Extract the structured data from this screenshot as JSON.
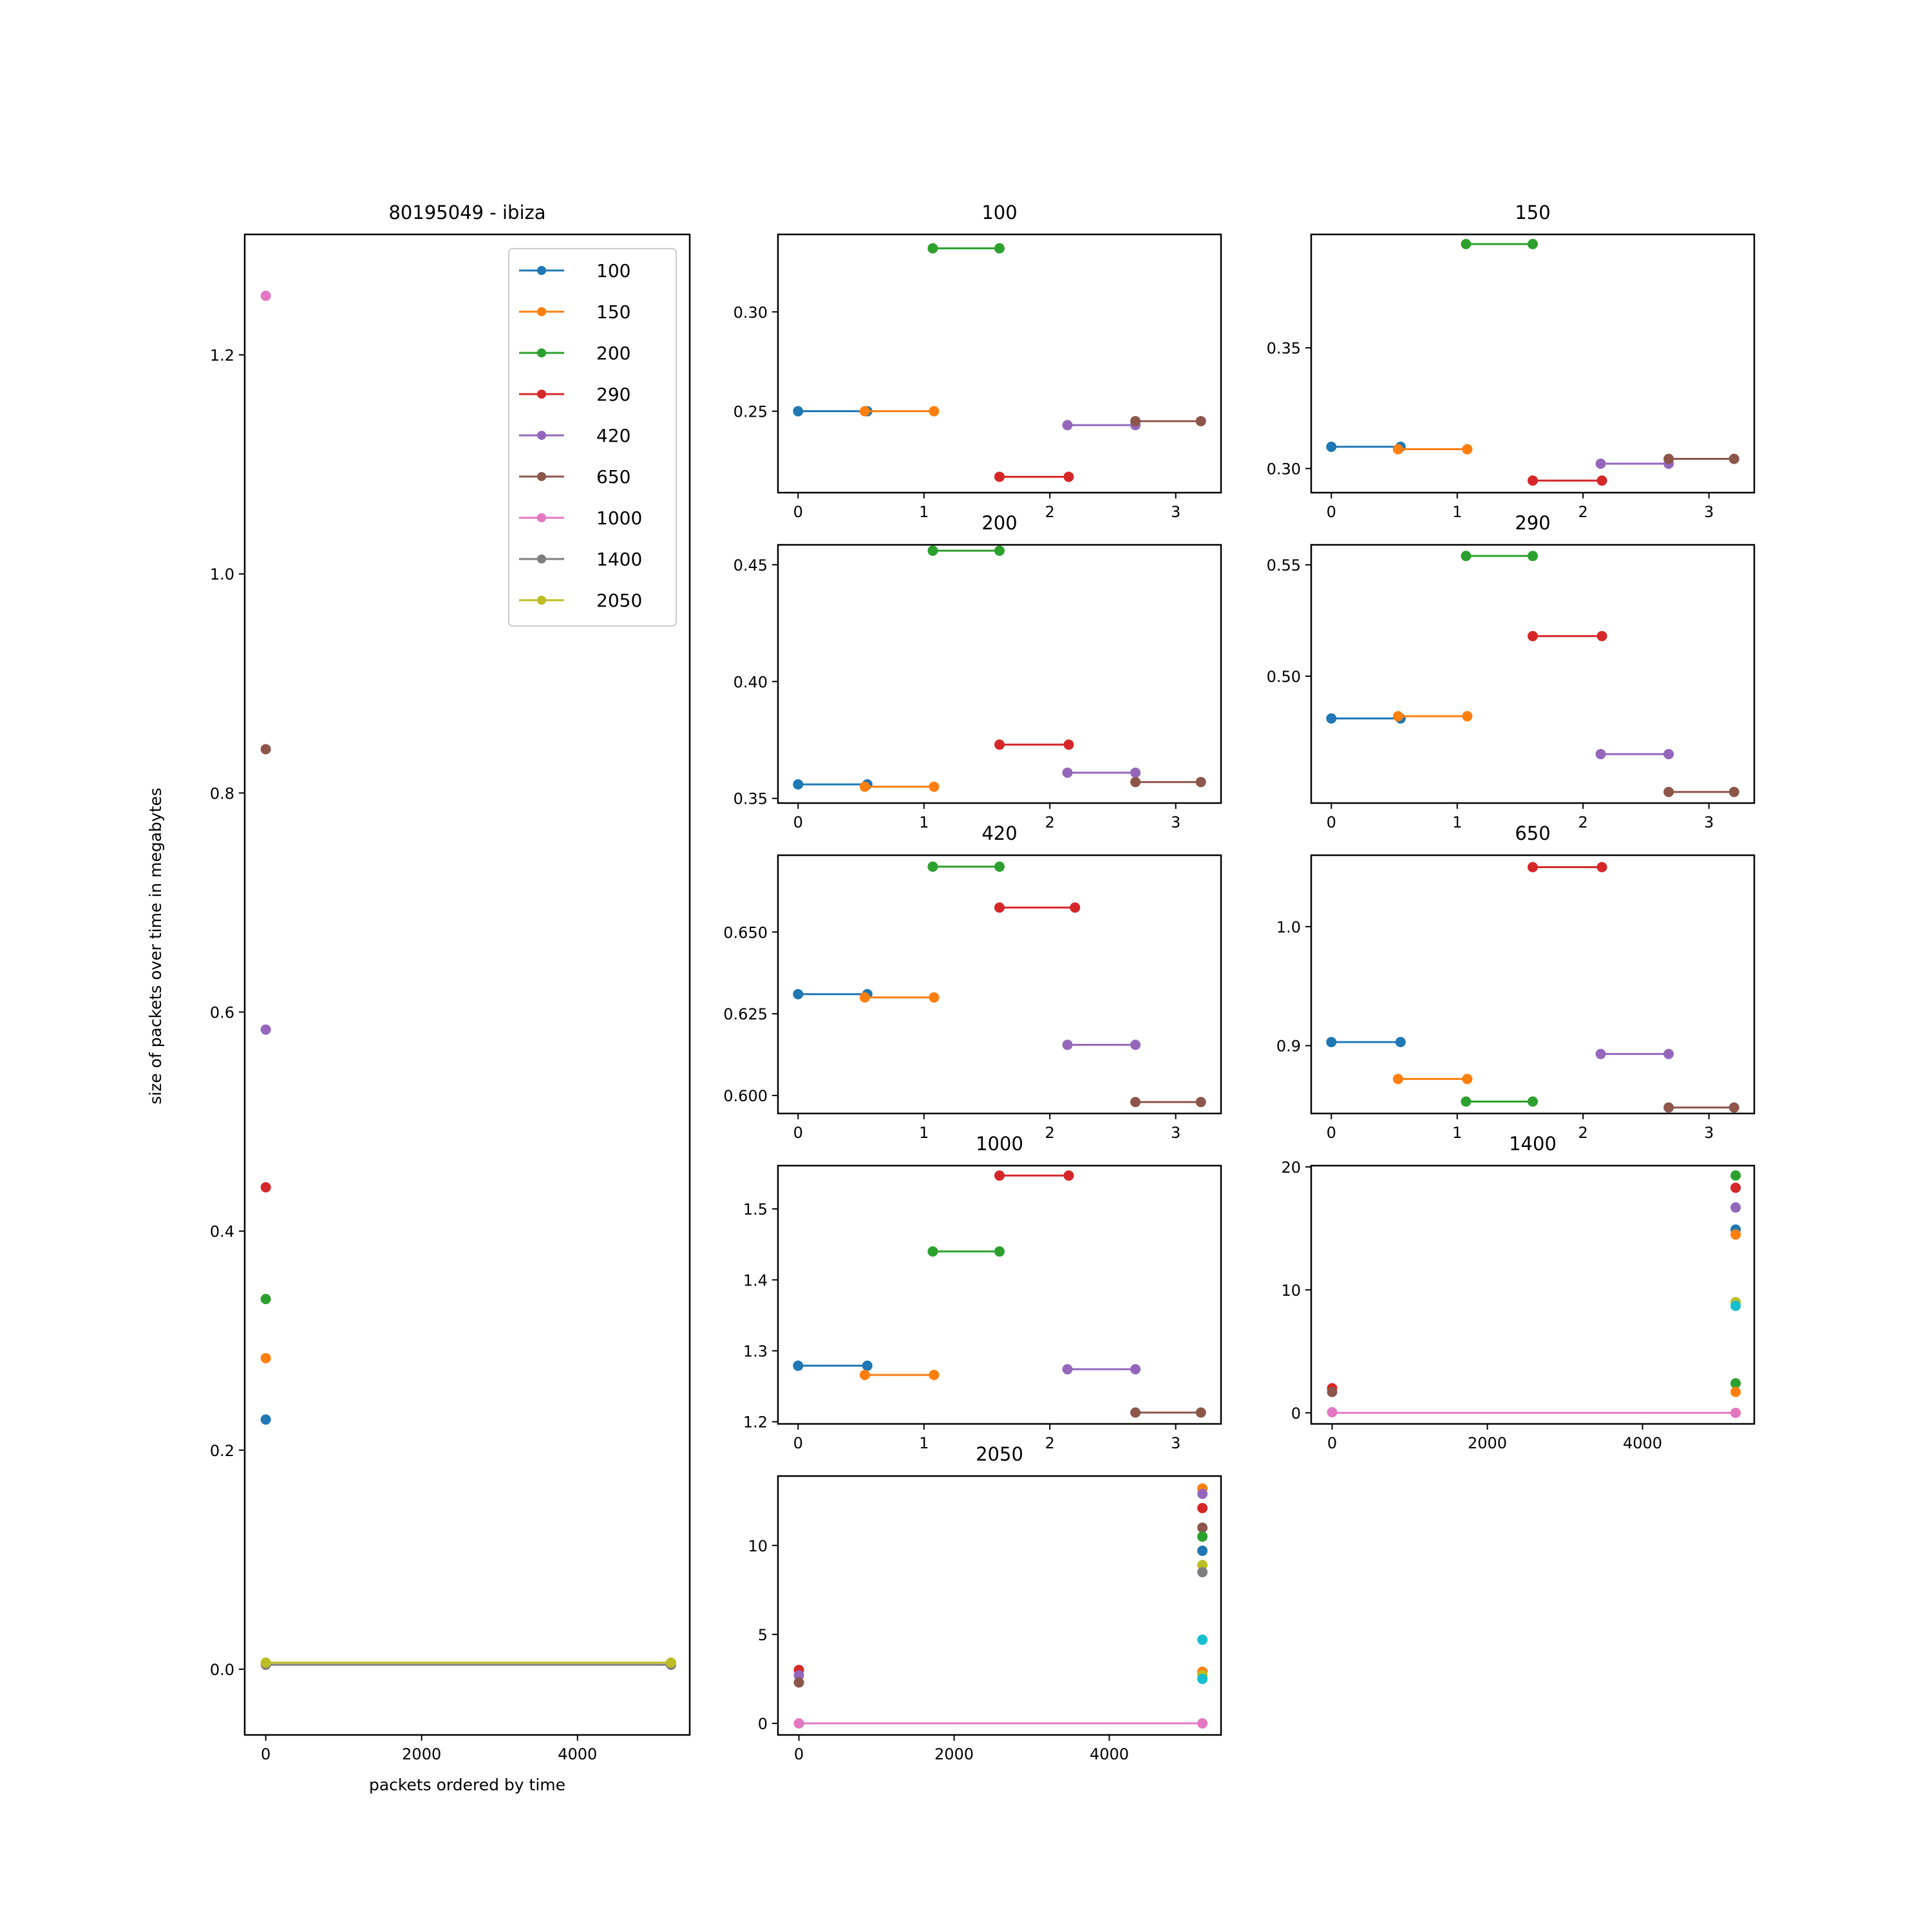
{
  "colors": {
    "100": "#1f77b4",
    "150": "#ff7f0e",
    "200": "#2ca02c",
    "290": "#d62728",
    "420": "#9467bd",
    "650": "#8c564b",
    "1000": "#e377c2",
    "1400": "#7f7f7f",
    "2050": "#bcbd22",
    "cyan": "#17becf"
  },
  "chart_data": [
    {
      "id": "main",
      "type": "scatter",
      "title": "80195049 - ibiza",
      "xlabel": "packets ordered by time",
      "ylabel": "size of packets over time in megabytes",
      "xlim": [
        -270,
        5440
      ],
      "ylim": [
        -0.06,
        1.31
      ],
      "xticks": [
        0,
        2000,
        4000
      ],
      "yticks": [
        0.0,
        0.2,
        0.4,
        0.6,
        0.8,
        1.0,
        1.2
      ],
      "ytick_labels": [
        "0.0",
        "0.2",
        "0.4",
        "0.6",
        "0.8",
        "1.0",
        "1.2"
      ],
      "legend": {
        "location": "upper right",
        "entries": [
          "100",
          "150",
          "200",
          "290",
          "420",
          "650",
          "1000",
          "1400",
          "2050"
        ]
      },
      "series": [
        {
          "name": "100",
          "x": [
            0
          ],
          "y": [
            0.228
          ]
        },
        {
          "name": "150",
          "x": [
            0
          ],
          "y": [
            0.284
          ]
        },
        {
          "name": "200",
          "x": [
            0
          ],
          "y": [
            0.338
          ]
        },
        {
          "name": "290",
          "x": [
            0
          ],
          "y": [
            0.44
          ]
        },
        {
          "name": "420",
          "x": [
            0
          ],
          "y": [
            0.584
          ]
        },
        {
          "name": "650",
          "x": [
            0
          ],
          "y": [
            0.84
          ]
        },
        {
          "name": "1000",
          "x": [
            0
          ],
          "y": [
            1.254
          ]
        },
        {
          "name": "1400",
          "x": [
            0,
            5200
          ],
          "y": [
            0.004,
            0.004
          ]
        },
        {
          "name": "2050",
          "x": [
            0,
            5200
          ],
          "y": [
            0.006,
            0.006
          ]
        }
      ]
    },
    {
      "id": "p100",
      "type": "line",
      "title": "100",
      "xlim": [
        -0.16,
        3.36
      ],
      "ylim": [
        0.209,
        0.339
      ],
      "xticks": [
        0,
        1,
        2,
        3
      ],
      "yticks": [
        0.25,
        0.3
      ],
      "ytick_labels": [
        "0.25",
        "0.30"
      ],
      "series": [
        {
          "name": "100",
          "x": [
            0,
            0.55
          ],
          "y": [
            0.25,
            0.25
          ]
        },
        {
          "name": "150",
          "x": [
            0.53,
            1.08
          ],
          "y": [
            0.25,
            0.25
          ]
        },
        {
          "name": "200",
          "x": [
            1.07,
            1.6
          ],
          "y": [
            0.332,
            0.332
          ]
        },
        {
          "name": "290",
          "x": [
            1.6,
            2.15
          ],
          "y": [
            0.217,
            0.217
          ]
        },
        {
          "name": "420",
          "x": [
            2.14,
            2.68
          ],
          "y": [
            0.243,
            0.243
          ]
        },
        {
          "name": "650",
          "x": [
            2.68,
            3.2
          ],
          "y": [
            0.245,
            0.245
          ]
        }
      ]
    },
    {
      "id": "p150",
      "type": "line",
      "title": "150",
      "xlim": [
        -0.16,
        3.36
      ],
      "ylim": [
        0.29,
        0.397
      ],
      "xticks": [
        0,
        1,
        2,
        3
      ],
      "yticks": [
        0.3,
        0.35
      ],
      "ytick_labels": [
        "0.30",
        "0.35"
      ],
      "series": [
        {
          "name": "100",
          "x": [
            0,
            0.55
          ],
          "y": [
            0.309,
            0.309
          ]
        },
        {
          "name": "150",
          "x": [
            0.53,
            1.08
          ],
          "y": [
            0.308,
            0.308
          ]
        },
        {
          "name": "200",
          "x": [
            1.07,
            1.6
          ],
          "y": [
            0.393,
            0.393
          ]
        },
        {
          "name": "290",
          "x": [
            1.6,
            2.15
          ],
          "y": [
            0.295,
            0.295
          ]
        },
        {
          "name": "420",
          "x": [
            2.14,
            2.68
          ],
          "y": [
            0.302,
            0.302
          ]
        },
        {
          "name": "650",
          "x": [
            2.68,
            3.2
          ],
          "y": [
            0.304,
            0.304
          ]
        }
      ]
    },
    {
      "id": "p200",
      "type": "line",
      "title": "200",
      "xlim": [
        -0.16,
        3.36
      ],
      "ylim": [
        0.348,
        0.4585
      ],
      "xticks": [
        0,
        1,
        2,
        3
      ],
      "yticks": [
        0.35,
        0.4,
        0.45
      ],
      "ytick_labels": [
        "0.35",
        "0.40",
        "0.45"
      ],
      "series": [
        {
          "name": "100",
          "x": [
            0,
            0.55
          ],
          "y": [
            0.356,
            0.356
          ]
        },
        {
          "name": "150",
          "x": [
            0.53,
            1.08
          ],
          "y": [
            0.355,
            0.355
          ]
        },
        {
          "name": "200",
          "x": [
            1.07,
            1.6
          ],
          "y": [
            0.456,
            0.456
          ]
        },
        {
          "name": "290",
          "x": [
            1.6,
            2.15
          ],
          "y": [
            0.373,
            0.373
          ]
        },
        {
          "name": "420",
          "x": [
            2.14,
            2.68
          ],
          "y": [
            0.361,
            0.361
          ]
        },
        {
          "name": "650",
          "x": [
            2.68,
            3.2
          ],
          "y": [
            0.357,
            0.357
          ]
        }
      ]
    },
    {
      "id": "p290",
      "type": "line",
      "title": "290",
      "xlim": [
        -0.16,
        3.36
      ],
      "ylim": [
        0.443,
        0.559
      ],
      "xticks": [
        0,
        1,
        2,
        3
      ],
      "yticks": [
        0.5,
        0.55
      ],
      "ytick_labels": [
        "0.50",
        "0.55"
      ],
      "series": [
        {
          "name": "100",
          "x": [
            0,
            0.55
          ],
          "y": [
            0.481,
            0.481
          ]
        },
        {
          "name": "150",
          "x": [
            0.53,
            1.08
          ],
          "y": [
            0.482,
            0.482
          ]
        },
        {
          "name": "200",
          "x": [
            1.07,
            1.6
          ],
          "y": [
            0.554,
            0.554
          ]
        },
        {
          "name": "290",
          "x": [
            1.6,
            2.15
          ],
          "y": [
            0.518,
            0.518
          ]
        },
        {
          "name": "420",
          "x": [
            2.14,
            2.68
          ],
          "y": [
            0.465,
            0.465
          ]
        },
        {
          "name": "650",
          "x": [
            2.68,
            3.2
          ],
          "y": [
            0.448,
            0.448
          ]
        }
      ]
    },
    {
      "id": "p420",
      "type": "line",
      "title": "420",
      "xlim": [
        -0.16,
        3.36
      ],
      "ylim": [
        0.5945,
        0.6735
      ],
      "xticks": [
        0,
        1,
        2,
        3
      ],
      "yticks": [
        0.6,
        0.625,
        0.65
      ],
      "ytick_labels": [
        "0.600",
        "0.625",
        "0.650"
      ],
      "series": [
        {
          "name": "100",
          "x": [
            0,
            0.55
          ],
          "y": [
            0.631,
            0.631
          ]
        },
        {
          "name": "150",
          "x": [
            0.53,
            1.08
          ],
          "y": [
            0.63,
            0.63
          ]
        },
        {
          "name": "200",
          "x": [
            1.07,
            1.6
          ],
          "y": [
            0.67,
            0.67
          ]
        },
        {
          "name": "290",
          "x": [
            1.6,
            2.2
          ],
          "y": [
            0.6575,
            0.6575
          ]
        },
        {
          "name": "420",
          "x": [
            2.14,
            2.68
          ],
          "y": [
            0.6155,
            0.6155
          ]
        },
        {
          "name": "650",
          "x": [
            2.68,
            3.2
          ],
          "y": [
            0.598,
            0.598
          ]
        }
      ]
    },
    {
      "id": "p650",
      "type": "line",
      "title": "650",
      "xlim": [
        -0.16,
        3.36
      ],
      "ylim": [
        0.843,
        1.06
      ],
      "xticks": [
        0,
        1,
        2,
        3
      ],
      "yticks": [
        0.9,
        1.0
      ],
      "ytick_labels": [
        "0.9",
        "1.0"
      ],
      "series": [
        {
          "name": "100",
          "x": [
            0,
            0.55
          ],
          "y": [
            0.903,
            0.903
          ]
        },
        {
          "name": "150",
          "x": [
            0.53,
            1.08
          ],
          "y": [
            0.872,
            0.872
          ]
        },
        {
          "name": "200",
          "x": [
            1.07,
            1.6
          ],
          "y": [
            0.853,
            0.853
          ]
        },
        {
          "name": "290",
          "x": [
            1.6,
            2.15
          ],
          "y": [
            1.05,
            1.05
          ]
        },
        {
          "name": "420",
          "x": [
            2.14,
            2.68
          ],
          "y": [
            0.893,
            0.893
          ]
        },
        {
          "name": "650",
          "x": [
            2.68,
            3.2
          ],
          "y": [
            0.848,
            0.848
          ]
        }
      ]
    },
    {
      "id": "p1000",
      "type": "line",
      "title": "1000",
      "xlim": [
        -0.16,
        3.36
      ],
      "ylim": [
        1.197,
        1.561
      ],
      "xticks": [
        0,
        1,
        2,
        3
      ],
      "yticks": [
        1.2,
        1.3,
        1.4,
        1.5
      ],
      "ytick_labels": [
        "1.2",
        "1.3",
        "1.4",
        "1.5"
      ],
      "series": [
        {
          "name": "100",
          "x": [
            0,
            0.55
          ],
          "y": [
            1.279,
            1.279
          ]
        },
        {
          "name": "150",
          "x": [
            0.53,
            1.08
          ],
          "y": [
            1.266,
            1.266
          ]
        },
        {
          "name": "200",
          "x": [
            1.07,
            1.6
          ],
          "y": [
            1.44,
            1.44
          ]
        },
        {
          "name": "290",
          "x": [
            1.6,
            2.15
          ],
          "y": [
            1.547,
            1.547
          ]
        },
        {
          "name": "420",
          "x": [
            2.14,
            2.68
          ],
          "y": [
            1.274,
            1.274
          ]
        },
        {
          "name": "650",
          "x": [
            2.68,
            3.2
          ],
          "y": [
            1.213,
            1.213
          ]
        }
      ]
    },
    {
      "id": "p1400",
      "type": "scatter",
      "title": "1400",
      "xlim": [
        -270,
        5440
      ],
      "ylim": [
        -0.9,
        20.1
      ],
      "xticks": [
        0,
        2000,
        4000
      ],
      "yticks": [
        0,
        10,
        20
      ],
      "ytick_labels": [
        "0",
        "10",
        "20"
      ],
      "line": {
        "name": "1000",
        "x": [
          0,
          5200
        ],
        "y": [
          0,
          0
        ]
      },
      "series": [
        {
          "name": "290",
          "x": [
            0
          ],
          "y": [
            2.0
          ]
        },
        {
          "name": "650",
          "x": [
            0
          ],
          "y": [
            1.7
          ]
        },
        {
          "name": "1000",
          "x": [
            0
          ],
          "y": [
            0.05
          ]
        },
        {
          "name": "200",
          "x": [
            5200
          ],
          "y": [
            19.3
          ]
        },
        {
          "name": "290",
          "x": [
            5200
          ],
          "y": [
            18.3
          ]
        },
        {
          "name": "420",
          "x": [
            5200
          ],
          "y": [
            16.7
          ]
        },
        {
          "name": "100",
          "x": [
            5200
          ],
          "y": [
            14.9
          ]
        },
        {
          "name": "150",
          "x": [
            5200
          ],
          "y": [
            14.5
          ]
        },
        {
          "name": "2050",
          "x": [
            5200
          ],
          "y": [
            9.0
          ]
        },
        {
          "name": "cyan",
          "x": [
            5200
          ],
          "y": [
            8.7
          ]
        },
        {
          "name": "200",
          "x": [
            5200
          ],
          "y": [
            2.4
          ]
        },
        {
          "name": "150",
          "x": [
            5200
          ],
          "y": [
            1.7
          ]
        },
        {
          "name": "1000",
          "x": [
            5200
          ],
          "y": [
            0.0
          ]
        }
      ]
    },
    {
      "id": "p2050",
      "type": "scatter",
      "title": "2050",
      "xlim": [
        -270,
        5440
      ],
      "ylim": [
        -0.65,
        13.9
      ],
      "xticks": [
        0,
        2000,
        4000
      ],
      "yticks": [
        0,
        5,
        10
      ],
      "ytick_labels": [
        "0",
        "5",
        "10"
      ],
      "line": {
        "name": "1000",
        "x": [
          0,
          5200
        ],
        "y": [
          0,
          0
        ]
      },
      "series": [
        {
          "name": "290",
          "x": [
            0
          ],
          "y": [
            3.0
          ]
        },
        {
          "name": "420",
          "x": [
            0
          ],
          "y": [
            2.7
          ]
        },
        {
          "name": "650",
          "x": [
            0
          ],
          "y": [
            2.3
          ]
        },
        {
          "name": "1000",
          "x": [
            0
          ],
          "y": [
            0.0
          ]
        },
        {
          "name": "150",
          "x": [
            5200
          ],
          "y": [
            13.2
          ]
        },
        {
          "name": "420",
          "x": [
            5200
          ],
          "y": [
            12.9
          ]
        },
        {
          "name": "290",
          "x": [
            5200
          ],
          "y": [
            12.1
          ]
        },
        {
          "name": "650",
          "x": [
            5200
          ],
          "y": [
            11.0
          ]
        },
        {
          "name": "200",
          "x": [
            5200
          ],
          "y": [
            10.5
          ]
        },
        {
          "name": "100",
          "x": [
            5200
          ],
          "y": [
            9.7
          ]
        },
        {
          "name": "2050",
          "x": [
            5200
          ],
          "y": [
            8.9
          ]
        },
        {
          "name": "1400",
          "x": [
            5200
          ],
          "y": [
            8.5
          ]
        },
        {
          "name": "cyan",
          "x": [
            5200
          ],
          "y": [
            4.7
          ]
        },
        {
          "name": "150",
          "x": [
            5200
          ],
          "y": [
            2.9
          ]
        },
        {
          "name": "2050",
          "x": [
            5200
          ],
          "y": [
            2.7
          ]
        },
        {
          "name": "cyan",
          "x": [
            5200
          ],
          "y": [
            2.5
          ]
        },
        {
          "name": "1000",
          "x": [
            5200
          ],
          "y": [
            0.0
          ]
        }
      ]
    }
  ]
}
